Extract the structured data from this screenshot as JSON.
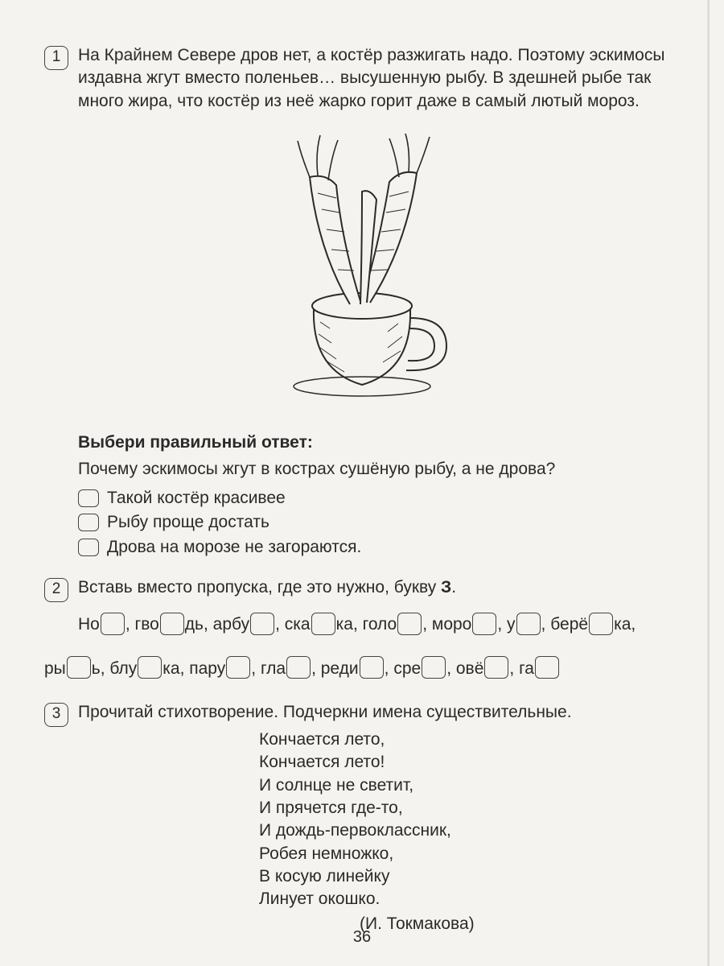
{
  "page_number": "36",
  "task1": {
    "num": "1",
    "paragraph": "На Крайнем Севере дров нет, а костёр разжигать надо. Поэтому эскимосы издавна жгут вместо поленьев… высушенную рыбу. В здешней рыбе так много жира, что костёр из неё жарко горит даже в самый лютый мороз.",
    "question_title": "Выбери правильный ответ:",
    "question_text": "Почему эскимосы жгут в кострах сушёную рыбу, а не дрова?",
    "options": [
      "Такой костёр красивее",
      "Рыбу проще достать",
      "Дрова на морозе не загораются."
    ]
  },
  "task2": {
    "num": "2",
    "instruction_prefix": "Вставь вместо пропуска, где это нужно, букву ",
    "letter": "З",
    "instruction_suffix": ".",
    "words_line1": [
      {
        "pre": "Но",
        "post": ","
      },
      {
        "pre": " гво",
        "post": "дь,"
      },
      {
        "pre": " арбу",
        "post": ","
      },
      {
        "pre": " ска",
        "post": "ка,"
      },
      {
        "pre": " голо",
        "post": ","
      },
      {
        "pre": " моро",
        "post": ","
      },
      {
        "pre": " у",
        "post": ","
      },
      {
        "pre": " берё",
        "post": "ка,"
      }
    ],
    "words_line2": [
      {
        "pre": "ры",
        "post": "ь,"
      },
      {
        "pre": " блу",
        "post": "ка,"
      },
      {
        "pre": " пару",
        "post": ","
      },
      {
        "pre": " гла",
        "post": ","
      },
      {
        "pre": " реди",
        "post": ","
      },
      {
        "pre": " сре",
        "post": ","
      },
      {
        "pre": " овё",
        "post": ","
      },
      {
        "pre": " га",
        "post": ""
      }
    ]
  },
  "task3": {
    "num": "3",
    "instruction": "Прочитай стихотворение. Подчеркни имена существительные.",
    "poem": [
      "Кончается лето,",
      "Кончается лето!",
      "И солнце не светит,",
      "И прячется где-то,",
      "И дождь-первоклассник,",
      "Робея немножко,",
      "В косую линейку",
      "Линует окошко."
    ],
    "author": "(И. Токмакова)"
  },
  "illustration": {
    "description": "fish-in-cup-on-fire",
    "stroke": "#2a2a2a",
    "fill": "#f5f3ef"
  }
}
